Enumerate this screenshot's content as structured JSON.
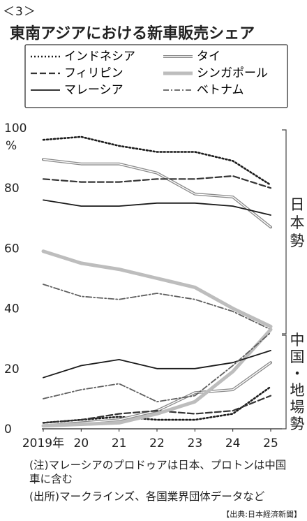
{
  "figure_number": "＜3＞",
  "footnote_1": "(注)マレーシアのプロドゥアは日本、プロトンは中国車に含む",
  "footnote_2": "(出所)マークラインズ、各国業界団体データなど",
  "credit": "【出典:日本経済新聞】",
  "bracket_labels": {
    "japan": "日本勢",
    "china": "中国・地場勢"
  },
  "chart_data": {
    "type": "line",
    "title": "東南アジアにおける新車販売シェア",
    "ylabel": "%",
    "xlabel": "",
    "x": [
      "2019年",
      "20",
      "21",
      "22",
      "23",
      "24",
      "25"
    ],
    "y_ticks": [
      "0",
      "20",
      "40",
      "60",
      "80",
      "100"
    ],
    "ylim": [
      0,
      100
    ],
    "grid": false,
    "legend_placement": "top",
    "series": [
      {
        "name": "インドネシア",
        "group": "japan",
        "values": [
          96,
          97,
          94,
          92,
          92,
          89,
          81
        ]
      },
      {
        "name": "タイ",
        "group": "japan",
        "values": [
          89.5,
          88,
          88,
          85,
          78,
          77,
          67
        ]
      },
      {
        "name": "フィリピン",
        "group": "japan",
        "values": [
          83,
          82,
          82,
          83,
          83,
          84,
          80
        ]
      },
      {
        "name": "シンガポール",
        "group": "japan",
        "values": [
          59,
          55,
          53,
          50,
          47,
          40,
          34
        ]
      },
      {
        "name": "マレーシア",
        "group": "japan",
        "values": [
          76,
          74,
          74,
          75,
          75,
          74,
          71
        ]
      },
      {
        "name": "ベトナム",
        "group": "japan",
        "values": [
          48,
          44,
          43,
          45,
          43,
          39,
          33
        ]
      },
      {
        "name": "インドネシア",
        "group": "china",
        "values": [
          2,
          3,
          4,
          3,
          3,
          5,
          14
        ]
      },
      {
        "name": "タイ",
        "group": "china",
        "values": [
          1,
          2,
          3,
          6,
          12,
          13,
          22
        ]
      },
      {
        "name": "フィリピン",
        "group": "china",
        "values": [
          2,
          3,
          5,
          6,
          5,
          6,
          11
        ]
      },
      {
        "name": "シンガポール",
        "group": "china",
        "values": [
          1,
          1.5,
          2,
          5,
          9,
          19,
          33
        ]
      },
      {
        "name": "マレーシア",
        "group": "china",
        "values": [
          17,
          21,
          23,
          20,
          20,
          22,
          26
        ]
      },
      {
        "name": "ベトナム",
        "group": "china",
        "values": [
          10,
          13,
          15,
          9,
          11,
          21,
          32
        ]
      }
    ]
  },
  "styles": {
    "インドネシア": {
      "color": "#1a1a1a",
      "dash": "2 3",
      "width": 2.6
    },
    "タイ": {
      "color": "#8a8a8a",
      "dash": "",
      "width": 4,
      "double": true
    },
    "フィリピン": {
      "color": "#333333",
      "dash": "9 4",
      "width": 2.2
    },
    "シンガポール": {
      "color": "#bdbdbd",
      "dash": "",
      "width": 5
    },
    "マレーシア": {
      "color": "#1a1a1a",
      "dash": "",
      "width": 1.8
    },
    "ベトナム": {
      "color": "#5e5e5e",
      "dash": "8 3 2 3",
      "width": 1.8
    }
  }
}
